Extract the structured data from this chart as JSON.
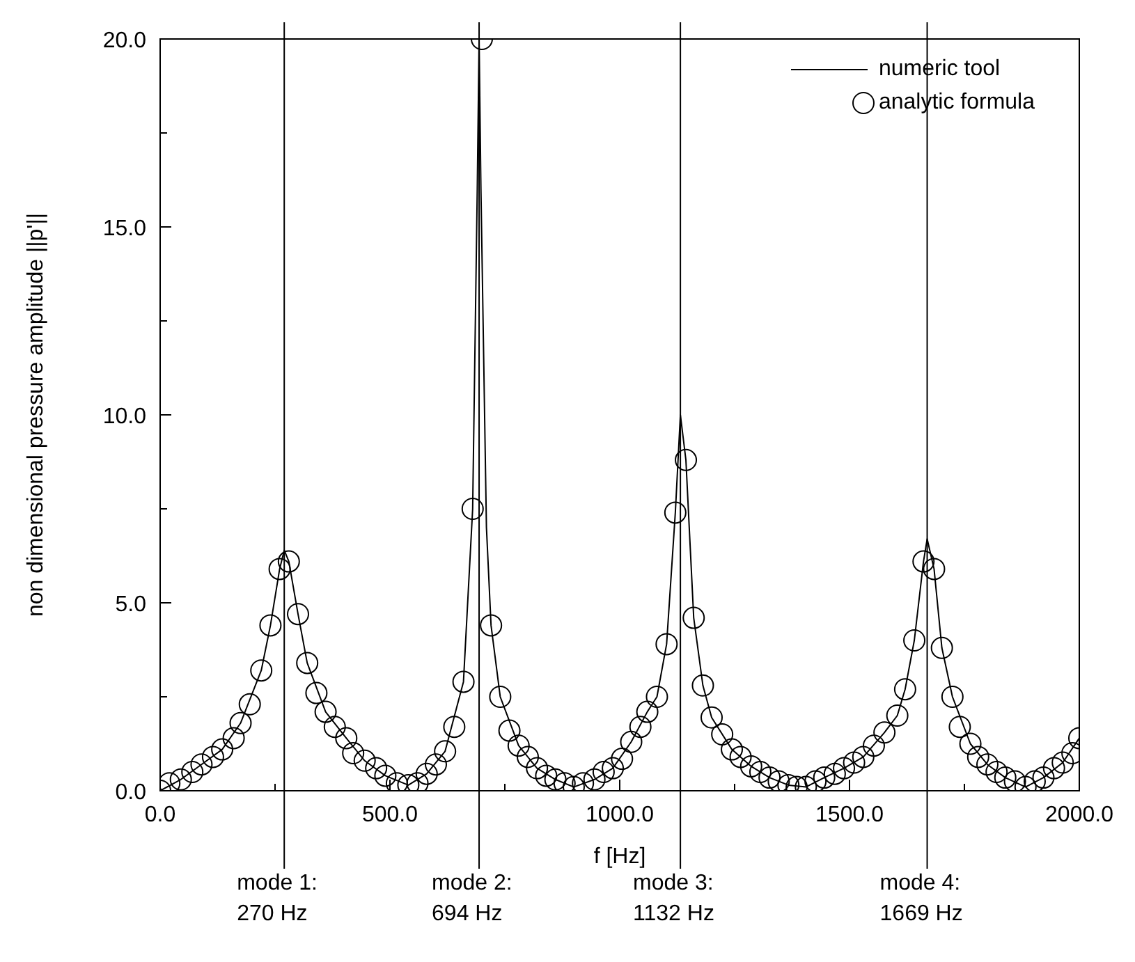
{
  "chart_data": {
    "type": "line",
    "xlabel": "f [Hz]",
    "ylabel": "non dimensional pressure amplitude ||p'||",
    "xlim": [
      0,
      2000
    ],
    "ylim": [
      0,
      20
    ],
    "xticks": [
      {
        "value": 0,
        "label": "0.0"
      },
      {
        "value": 250,
        "label": null
      },
      {
        "value": 500,
        "label": "500.0"
      },
      {
        "value": 750,
        "label": null
      },
      {
        "value": 1000,
        "label": "1000.0"
      },
      {
        "value": 1250,
        "label": null
      },
      {
        "value": 1500,
        "label": "1500.0"
      },
      {
        "value": 1750,
        "label": null
      },
      {
        "value": 2000,
        "label": "2000.0"
      }
    ],
    "yticks": [
      {
        "value": 0,
        "label": "0.0"
      },
      {
        "value": 2.5,
        "label": null
      },
      {
        "value": 5,
        "label": "5.0"
      },
      {
        "value": 7.5,
        "label": null
      },
      {
        "value": 10,
        "label": "10.0"
      },
      {
        "value": 12.5,
        "label": null
      },
      {
        "value": 15,
        "label": "15.0"
      },
      {
        "value": 17.5,
        "label": null
      },
      {
        "value": 20,
        "label": "20.0"
      }
    ],
    "grid": false,
    "legend": "top right",
    "series": [
      {
        "name": "numeric tool",
        "type": "line",
        "color": "#000000",
        "marker": "none",
        "line_style": "solid",
        "x": [
          0,
          45,
          90,
          135,
          175,
          220,
          240,
          260,
          270,
          280,
          300,
          320,
          360,
          405,
          445,
          490,
          540,
          580,
          620,
          660,
          680,
          690,
          694,
          698,
          710,
          720,
          740,
          780,
          820,
          860,
          900,
          945,
          985,
          1025,
          1060,
          1081,
          1102,
          1121,
          1132,
          1144,
          1161,
          1181,
          1200,
          1244,
          1286,
          1326,
          1367,
          1405,
          1445,
          1488,
          1530,
          1576,
          1604,
          1621,
          1641,
          1661,
          1669,
          1684,
          1701,
          1724,
          1763,
          1800,
          1839,
          1883,
          1922,
          1964,
          2000
        ],
        "values": [
          0.0,
          0.3,
          0.7,
          1.1,
          1.8,
          3.2,
          4.4,
          5.9,
          6.4,
          6.1,
          4.7,
          3.4,
          2.1,
          1.4,
          0.8,
          0.4,
          0.15,
          0.45,
          1.05,
          2.9,
          7.5,
          16.0,
          20.0,
          16.0,
          7.0,
          4.4,
          2.5,
          1.2,
          0.6,
          0.3,
          0.1,
          0.3,
          0.6,
          1.3,
          2.1,
          2.5,
          3.9,
          7.4,
          10.0,
          8.8,
          4.6,
          2.8,
          1.95,
          1.1,
          0.65,
          0.35,
          0.15,
          0.1,
          0.35,
          0.6,
          0.9,
          1.55,
          2.0,
          2.7,
          4.0,
          6.1,
          6.7,
          5.9,
          3.8,
          2.5,
          1.25,
          0.7,
          0.35,
          0.1,
          0.35,
          0.75,
          1.4
        ]
      },
      {
        "name": "analytic formula",
        "type": "scatter",
        "color": "#000000",
        "marker": "circle",
        "x": [
          0,
          20,
          45,
          70,
          90,
          115,
          135,
          160,
          175,
          195,
          220,
          240,
          260,
          280,
          300,
          320,
          340,
          360,
          380,
          405,
          420,
          445,
          470,
          490,
          515,
          540,
          560,
          580,
          600,
          620,
          640,
          660,
          680,
          700,
          720,
          740,
          760,
          780,
          800,
          820,
          840,
          860,
          880,
          900,
          920,
          945,
          965,
          985,
          1005,
          1025,
          1045,
          1060,
          1081,
          1102,
          1121,
          1144,
          1161,
          1181,
          1200,
          1223,
          1244,
          1263,
          1286,
          1306,
          1326,
          1346,
          1367,
          1385,
          1405,
          1426,
          1445,
          1468,
          1488,
          1510,
          1530,
          1553,
          1576,
          1604,
          1621,
          1641,
          1661,
          1684,
          1701,
          1724,
          1740,
          1763,
          1780,
          1800,
          1820,
          1839,
          1860,
          1883,
          1903,
          1922,
          1945,
          1964,
          1985,
          2000
        ],
        "values": [
          0.0,
          0.2,
          0.3,
          0.5,
          0.7,
          0.9,
          1.1,
          1.4,
          1.8,
          2.3,
          3.2,
          4.4,
          5.9,
          6.1,
          4.7,
          3.4,
          2.6,
          2.1,
          1.7,
          1.4,
          1.0,
          0.8,
          0.6,
          0.4,
          0.2,
          0.15,
          0.2,
          0.45,
          0.7,
          1.05,
          1.7,
          2.9,
          7.5,
          20.0,
          4.4,
          2.5,
          1.6,
          1.2,
          0.9,
          0.6,
          0.4,
          0.3,
          0.2,
          0.1,
          0.2,
          0.3,
          0.5,
          0.6,
          0.85,
          1.3,
          1.7,
          2.1,
          2.5,
          3.9,
          7.4,
          8.8,
          4.6,
          2.8,
          1.95,
          1.5,
          1.1,
          0.9,
          0.65,
          0.5,
          0.35,
          0.25,
          0.15,
          0.1,
          0.1,
          0.25,
          0.35,
          0.45,
          0.6,
          0.75,
          0.9,
          1.2,
          1.55,
          2.0,
          2.7,
          4.0,
          6.1,
          5.9,
          3.8,
          2.5,
          1.7,
          1.25,
          0.9,
          0.7,
          0.5,
          0.35,
          0.25,
          0.1,
          0.25,
          0.35,
          0.6,
          0.75,
          1.0,
          1.4
        ]
      }
    ],
    "ref_lines": [
      {
        "axis": "x",
        "value": 270,
        "label": "mode 1:\n270 Hz",
        "color": "#000000"
      },
      {
        "axis": "x",
        "value": 694,
        "label": "mode 2:\n694 Hz",
        "color": "#000000"
      },
      {
        "axis": "x",
        "value": 1132,
        "label": "mode 3:\n1132 Hz",
        "color": "#000000"
      },
      {
        "axis": "x",
        "value": 1669,
        "label": "mode 4:\n1669 Hz",
        "color": "#000000"
      }
    ]
  }
}
